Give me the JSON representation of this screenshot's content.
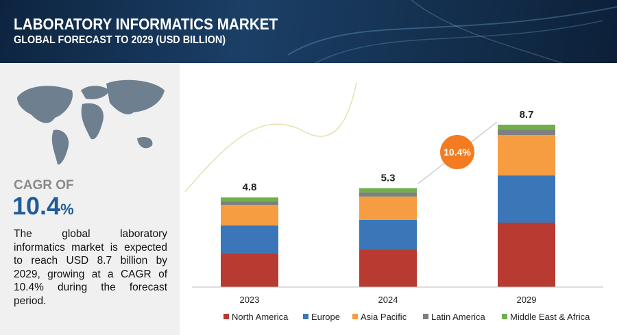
{
  "header": {
    "title": "LABORATORY INFORMATICS MARKET",
    "subtitle": "GLOBAL FORECAST TO 2029 (USD BILLION)"
  },
  "sidebar": {
    "cagr_label": "CAGR OF",
    "cagr_value": "10.4",
    "cagr_unit": "%",
    "description": "The global laboratory informatics market is expected to reach USD 8.7 billion by 2029, growing at a CAGR of 10.4% during the forecast period."
  },
  "chart_data": {
    "type": "stacked_bar",
    "categories": [
      "2023",
      "2024",
      "2029"
    ],
    "series": [
      {
        "name": "North America",
        "color": "#b83a30",
        "values": [
          1.8,
          2.0,
          3.45
        ]
      },
      {
        "name": "Europe",
        "color": "#3a76b8",
        "values": [
          1.5,
          1.6,
          2.53
        ]
      },
      {
        "name": "Asia Pacific",
        "color": "#f59d40",
        "values": [
          1.1,
          1.25,
          2.17
        ]
      },
      {
        "name": "Latin America",
        "color": "#7f7f7f",
        "values": [
          0.2,
          0.22,
          0.29
        ]
      },
      {
        "name": "Middle East & Africa",
        "color": "#6fb04a",
        "values": [
          0.2,
          0.23,
          0.26
        ]
      }
    ],
    "totals": [
      4.8,
      5.3,
      8.7
    ],
    "annotation": "10.4%",
    "legend": "bottom"
  }
}
